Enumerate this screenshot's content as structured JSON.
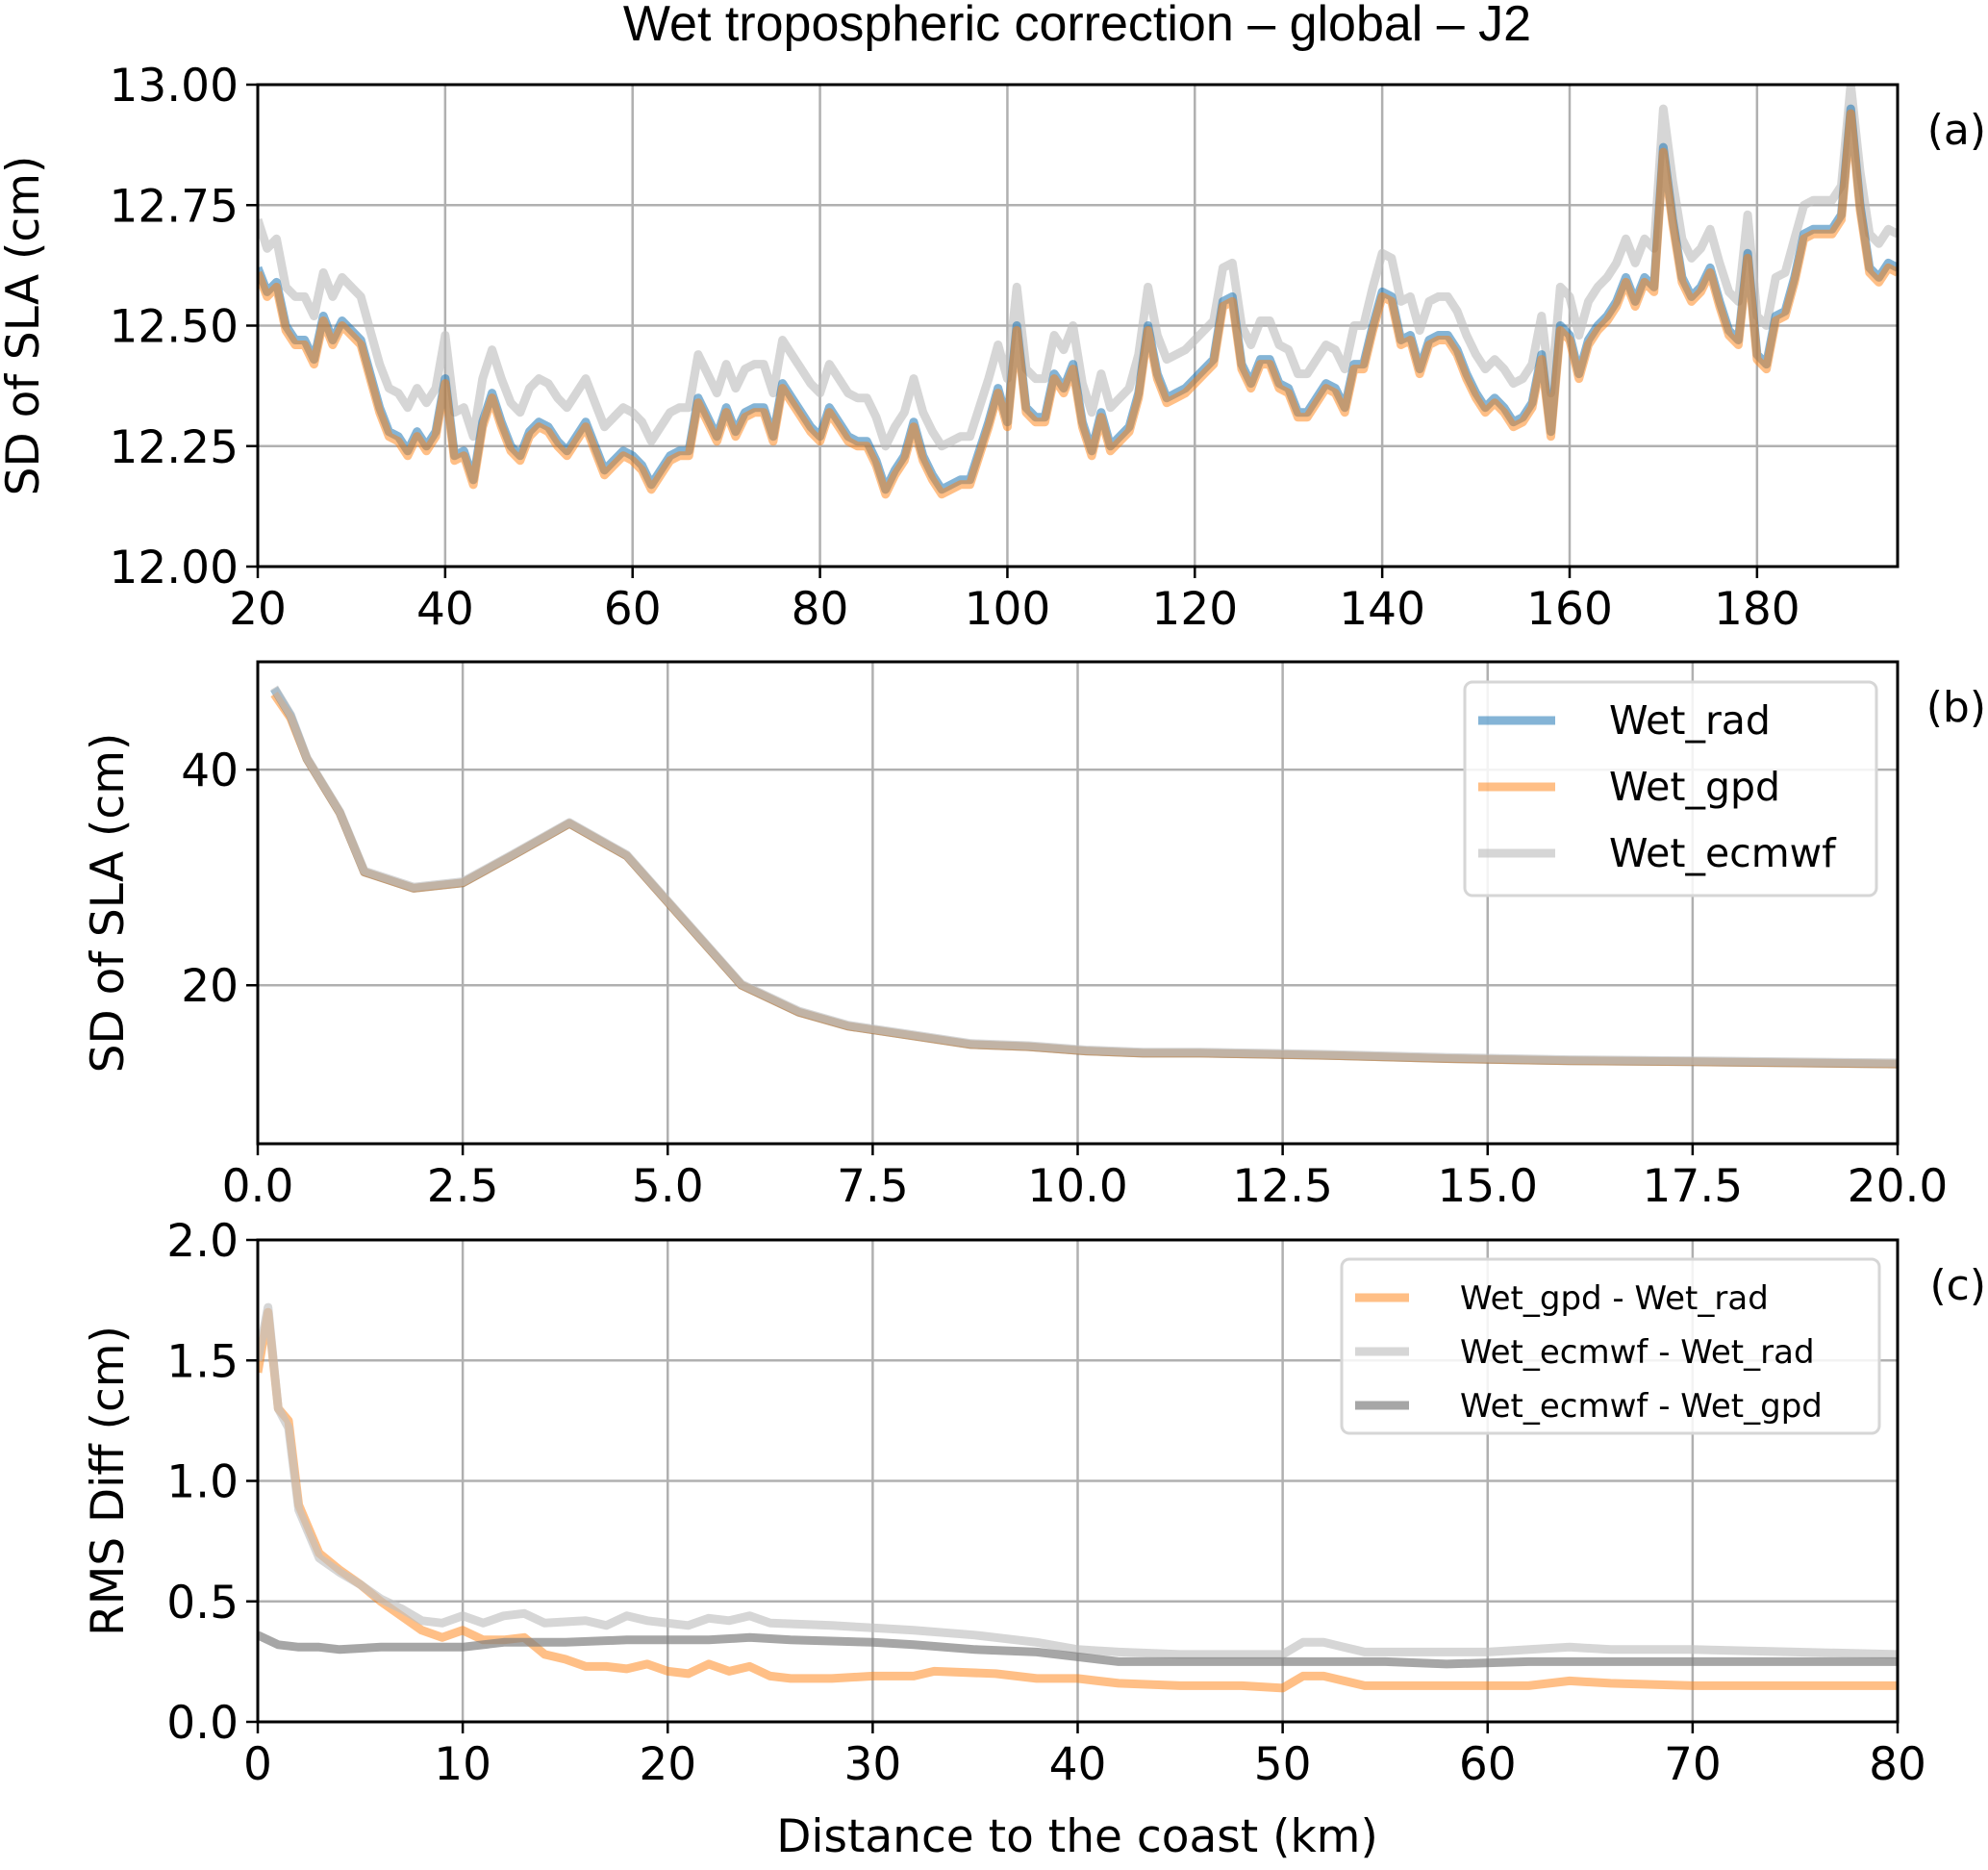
{
  "title": "Wet tropospheric correction – global – J2",
  "xlabel": "Distance to the coast (km)",
  "colors": {
    "Wet_rad": "#1f77b4",
    "Wet_gpd": "#ff7f0e",
    "Wet_ecmwf": "#c0c0c0",
    "Wet_ecmwf - Wet_gpd": "#808080"
  },
  "chart_data": [
    {
      "type": "line",
      "panel_label": "(a)",
      "ylabel": "SD of SLA (cm)",
      "xlim": [
        20,
        195
      ],
      "ylim": [
        12.0,
        13.0
      ],
      "grid": true,
      "xticks": [
        "20",
        "40",
        "60",
        "80",
        "100",
        "120",
        "140",
        "160",
        "180"
      ],
      "xtick_values": [
        20,
        40,
        60,
        80,
        100,
        120,
        140,
        160,
        180
      ],
      "yticks": [
        "12.00",
        "12.25",
        "12.50",
        "12.75",
        "13.00"
      ],
      "ytick_values": [
        12.0,
        12.25,
        12.5,
        12.75,
        13.0
      ],
      "x_start": 20,
      "x_step": 1,
      "series": [
        {
          "name": "Wet_ecmwf",
          "color": "#c0c0c0",
          "values": [
            12.72,
            12.66,
            12.68,
            12.58,
            12.56,
            12.56,
            12.52,
            12.61,
            12.56,
            12.6,
            12.58,
            12.56,
            12.49,
            12.42,
            12.37,
            12.36,
            12.33,
            12.37,
            12.34,
            12.37,
            12.48,
            12.32,
            12.33,
            12.27,
            12.39,
            12.45,
            12.39,
            12.34,
            12.32,
            12.37,
            12.39,
            12.38,
            12.35,
            12.33,
            12.36,
            12.39,
            12.34,
            12.29,
            12.31,
            12.33,
            12.32,
            12.3,
            12.26,
            12.29,
            12.32,
            12.33,
            12.33,
            12.44,
            12.4,
            12.36,
            12.42,
            12.37,
            12.41,
            12.42,
            12.42,
            12.36,
            12.47,
            12.44,
            12.41,
            12.38,
            12.36,
            12.42,
            12.39,
            12.36,
            12.35,
            12.35,
            12.31,
            12.25,
            12.29,
            12.32,
            12.39,
            12.32,
            12.28,
            12.25,
            12.26,
            12.27,
            12.27,
            12.33,
            12.39,
            12.46,
            12.39,
            12.58,
            12.41,
            12.39,
            12.39,
            12.48,
            12.45,
            12.5,
            12.38,
            12.32,
            12.4,
            12.33,
            12.35,
            12.37,
            12.44,
            12.58,
            12.48,
            12.43,
            12.44,
            12.45,
            12.47,
            12.49,
            12.51,
            12.62,
            12.63,
            12.5,
            12.46,
            12.51,
            12.51,
            12.46,
            12.45,
            12.4,
            12.4,
            12.43,
            12.46,
            12.45,
            12.41,
            12.5,
            12.5,
            12.58,
            12.65,
            12.64,
            12.55,
            12.56,
            12.49,
            12.55,
            12.56,
            12.56,
            12.53,
            12.48,
            12.44,
            12.41,
            12.43,
            12.41,
            12.38,
            12.39,
            12.42,
            12.52,
            12.36,
            12.58,
            12.56,
            12.48,
            12.55,
            12.58,
            12.6,
            12.63,
            12.68,
            12.63,
            12.68,
            12.66,
            12.95,
            12.8,
            12.68,
            12.64,
            12.66,
            12.7,
            12.63,
            12.57,
            12.55,
            12.73,
            12.52,
            12.5,
            12.6,
            12.61,
            12.68,
            12.75,
            12.76,
            12.76,
            12.76,
            12.79,
            13.0,
            12.82,
            12.69,
            12.67,
            12.7,
            12.69
          ]
        },
        {
          "name": "Wet_rad",
          "color": "#1f77b4",
          "values": [
            12.62,
            12.57,
            12.59,
            12.5,
            12.47,
            12.47,
            12.43,
            12.52,
            12.47,
            12.51,
            12.49,
            12.47,
            12.4,
            12.33,
            12.28,
            12.27,
            12.24,
            12.28,
            12.25,
            12.28,
            12.39,
            12.23,
            12.24,
            12.18,
            12.3,
            12.36,
            12.3,
            12.25,
            12.23,
            12.28,
            12.3,
            12.29,
            12.26,
            12.24,
            12.27,
            12.3,
            12.25,
            12.2,
            12.22,
            12.24,
            12.23,
            12.21,
            12.17,
            12.2,
            12.23,
            12.24,
            12.24,
            12.35,
            12.31,
            12.27,
            12.33,
            12.28,
            12.32,
            12.33,
            12.33,
            12.27,
            12.38,
            12.35,
            12.32,
            12.29,
            12.27,
            12.33,
            12.3,
            12.27,
            12.26,
            12.26,
            12.22,
            12.16,
            12.2,
            12.23,
            12.3,
            12.23,
            12.19,
            12.16,
            12.17,
            12.18,
            12.18,
            12.24,
            12.3,
            12.37,
            12.3,
            12.5,
            12.33,
            12.31,
            12.31,
            12.4,
            12.37,
            12.42,
            12.3,
            12.24,
            12.32,
            12.25,
            12.27,
            12.29,
            12.36,
            12.5,
            12.4,
            12.35,
            12.36,
            12.37,
            12.39,
            12.41,
            12.43,
            12.55,
            12.56,
            12.42,
            12.38,
            12.43,
            12.43,
            12.38,
            12.37,
            12.32,
            12.32,
            12.35,
            12.38,
            12.37,
            12.33,
            12.42,
            12.42,
            12.5,
            12.57,
            12.56,
            12.47,
            12.48,
            12.41,
            12.47,
            12.48,
            12.48,
            12.45,
            12.4,
            12.36,
            12.33,
            12.35,
            12.33,
            12.3,
            12.31,
            12.34,
            12.44,
            12.28,
            12.5,
            12.48,
            12.4,
            12.47,
            12.5,
            12.52,
            12.55,
            12.6,
            12.55,
            12.6,
            12.58,
            12.87,
            12.72,
            12.6,
            12.56,
            12.58,
            12.62,
            12.55,
            12.49,
            12.47,
            12.65,
            12.44,
            12.42,
            12.52,
            12.53,
            12.6,
            12.69,
            12.7,
            12.7,
            12.7,
            12.73,
            12.95,
            12.75,
            12.62,
            12.6,
            12.63,
            12.62
          ]
        },
        {
          "name": "Wet_gpd",
          "color": "#ff7f0e",
          "values": [
            12.61,
            12.56,
            12.58,
            12.49,
            12.46,
            12.46,
            12.42,
            12.51,
            12.46,
            12.5,
            12.48,
            12.46,
            12.39,
            12.32,
            12.27,
            12.26,
            12.23,
            12.27,
            12.24,
            12.27,
            12.38,
            12.22,
            12.23,
            12.17,
            12.29,
            12.35,
            12.29,
            12.24,
            12.22,
            12.27,
            12.29,
            12.28,
            12.25,
            12.23,
            12.26,
            12.29,
            12.24,
            12.19,
            12.21,
            12.23,
            12.22,
            12.2,
            12.16,
            12.19,
            12.22,
            12.23,
            12.23,
            12.34,
            12.3,
            12.26,
            12.32,
            12.27,
            12.31,
            12.32,
            12.32,
            12.26,
            12.37,
            12.34,
            12.31,
            12.28,
            12.26,
            12.32,
            12.29,
            12.26,
            12.25,
            12.25,
            12.21,
            12.15,
            12.19,
            12.22,
            12.29,
            12.22,
            12.18,
            12.15,
            12.16,
            12.17,
            12.17,
            12.23,
            12.29,
            12.36,
            12.29,
            12.49,
            12.32,
            12.3,
            12.3,
            12.39,
            12.36,
            12.41,
            12.29,
            12.23,
            12.31,
            12.24,
            12.26,
            12.28,
            12.35,
            12.49,
            12.39,
            12.34,
            12.35,
            12.36,
            12.38,
            12.4,
            12.42,
            12.54,
            12.55,
            12.41,
            12.37,
            12.42,
            12.42,
            12.37,
            12.36,
            12.31,
            12.31,
            12.34,
            12.37,
            12.36,
            12.32,
            12.41,
            12.41,
            12.49,
            12.56,
            12.55,
            12.46,
            12.47,
            12.4,
            12.46,
            12.47,
            12.47,
            12.44,
            12.39,
            12.35,
            12.32,
            12.34,
            12.32,
            12.29,
            12.3,
            12.33,
            12.43,
            12.27,
            12.49,
            12.47,
            12.39,
            12.46,
            12.49,
            12.51,
            12.54,
            12.59,
            12.54,
            12.59,
            12.57,
            12.86,
            12.71,
            12.59,
            12.55,
            12.57,
            12.61,
            12.54,
            12.48,
            12.46,
            12.64,
            12.43,
            12.41,
            12.51,
            12.52,
            12.59,
            12.68,
            12.69,
            12.69,
            12.69,
            12.72,
            12.94,
            12.74,
            12.61,
            12.59,
            12.62,
            12.61
          ]
        }
      ]
    },
    {
      "type": "line",
      "panel_label": "(b)",
      "ylabel": "SD of SLA (cm)",
      "xlim": [
        0,
        20
      ],
      "ylim": [
        5.3,
        50
      ],
      "grid": true,
      "legend": "top-right",
      "xticks": [
        "0.0",
        "2.5",
        "5.0",
        "7.5",
        "10.0",
        "12.5",
        "15.0",
        "17.5",
        "20.0"
      ],
      "xtick_values": [
        0,
        2.5,
        5,
        7.5,
        10,
        12.5,
        15,
        17.5,
        20
      ],
      "yticks": [
        "20",
        "40"
      ],
      "ytick_values": [
        20,
        40
      ],
      "x": [
        0.2,
        0.4,
        0.6,
        1.0,
        1.3,
        1.9,
        2.5,
        3.1,
        3.8,
        4.5,
        5.2,
        5.9,
        6.6,
        7.2,
        8.0,
        8.7,
        9.4,
        10.1,
        10.8,
        11.5,
        12.3,
        13.0,
        14.5,
        16.0,
        17.5,
        20.0
      ],
      "series": [
        {
          "name": "Wet_rad",
          "color": "#1f77b4",
          "values": [
            47.5,
            45.0,
            41.0,
            36.0,
            30.5,
            29.0,
            29.5,
            32.0,
            35.0,
            32.0,
            26.0,
            20.0,
            17.5,
            16.2,
            15.3,
            14.5,
            14.3,
            13.9,
            13.7,
            13.7,
            13.6,
            13.5,
            13.2,
            13.0,
            12.9,
            12.7
          ]
        },
        {
          "name": "Wet_gpd",
          "color": "#ff7f0e",
          "values": [
            47.0,
            44.8,
            41.0,
            36.0,
            30.5,
            29.0,
            29.5,
            32.0,
            35.0,
            32.0,
            26.0,
            20.0,
            17.5,
            16.2,
            15.3,
            14.5,
            14.3,
            13.9,
            13.7,
            13.7,
            13.6,
            13.5,
            13.2,
            13.0,
            12.9,
            12.7
          ]
        },
        {
          "name": "Wet_ecmwf",
          "color": "#c0c0c0",
          "values": [
            47.6,
            45.1,
            41.1,
            36.1,
            30.6,
            29.1,
            29.6,
            32.1,
            35.1,
            32.1,
            26.1,
            20.1,
            17.6,
            16.3,
            15.4,
            14.6,
            14.4,
            14.0,
            13.8,
            13.8,
            13.7,
            13.6,
            13.3,
            13.1,
            13.0,
            12.8
          ]
        }
      ]
    },
    {
      "type": "line",
      "panel_label": "(c)",
      "ylabel": "RMS Diff (cm)",
      "xlim": [
        0,
        80
      ],
      "ylim": [
        0,
        2.0
      ],
      "grid": true,
      "legend": "top-right",
      "xticks": [
        "0",
        "10",
        "20",
        "30",
        "40",
        "50",
        "60",
        "70",
        "80"
      ],
      "xtick_values": [
        0,
        10,
        20,
        30,
        40,
        50,
        60,
        70,
        80
      ],
      "yticks": [
        "0.0",
        "0.5",
        "1.0",
        "1.5",
        "2.0"
      ],
      "ytick_values": [
        0,
        0.5,
        1.0,
        1.5,
        2.0
      ],
      "series": [
        {
          "name": "Wet_gpd - Wet_rad",
          "color": "#ff7f0e",
          "x": [
            0,
            0.5,
            1,
            1.5,
            2,
            3,
            4,
            5,
            6,
            7,
            8,
            9,
            10,
            11,
            12,
            13,
            14,
            15,
            16,
            17,
            18,
            19,
            20,
            21,
            22,
            23,
            24,
            25,
            26,
            28,
            30,
            32,
            33,
            36,
            38,
            40,
            42,
            45,
            48,
            50,
            51,
            52,
            54,
            58,
            62,
            64,
            66,
            70,
            75,
            80
          ],
          "values": [
            1.45,
            1.7,
            1.3,
            1.25,
            0.9,
            0.7,
            0.63,
            0.57,
            0.5,
            0.44,
            0.38,
            0.35,
            0.38,
            0.34,
            0.34,
            0.35,
            0.28,
            0.26,
            0.23,
            0.23,
            0.22,
            0.24,
            0.21,
            0.2,
            0.24,
            0.21,
            0.23,
            0.19,
            0.18,
            0.18,
            0.19,
            0.19,
            0.21,
            0.2,
            0.18,
            0.18,
            0.16,
            0.15,
            0.15,
            0.14,
            0.19,
            0.19,
            0.15,
            0.15,
            0.15,
            0.17,
            0.16,
            0.15,
            0.15,
            0.15
          ]
        },
        {
          "name": "Wet_ecmwf - Wet_rad",
          "color": "#c0c0c0",
          "x": [
            0,
            0.5,
            1,
            1.5,
            2,
            3,
            4,
            5,
            6,
            7,
            8,
            9,
            10,
            11,
            12,
            13,
            14,
            16,
            17,
            18,
            19,
            20,
            21,
            22,
            23,
            24,
            25,
            28,
            30,
            32,
            35,
            38,
            40,
            42,
            45,
            50,
            51,
            52,
            54,
            60,
            64,
            66,
            70,
            75,
            80
          ],
          "values": [
            1.5,
            1.72,
            1.3,
            1.22,
            0.88,
            0.68,
            0.62,
            0.57,
            0.51,
            0.47,
            0.42,
            0.41,
            0.44,
            0.41,
            0.44,
            0.45,
            0.41,
            0.42,
            0.4,
            0.44,
            0.42,
            0.41,
            0.4,
            0.43,
            0.42,
            0.44,
            0.41,
            0.4,
            0.39,
            0.38,
            0.36,
            0.33,
            0.3,
            0.29,
            0.28,
            0.28,
            0.33,
            0.33,
            0.29,
            0.29,
            0.31,
            0.3,
            0.3,
            0.29,
            0.28
          ]
        },
        {
          "name": "Wet_ecmwf - Wet_gpd",
          "color": "#808080",
          "x": [
            0,
            1,
            2,
            3,
            4,
            6,
            10,
            12,
            15,
            18,
            22,
            24,
            26,
            30,
            32,
            35,
            38,
            40,
            42,
            45,
            50,
            55,
            58,
            62,
            70,
            80
          ],
          "values": [
            0.36,
            0.32,
            0.31,
            0.31,
            0.3,
            0.31,
            0.31,
            0.33,
            0.33,
            0.34,
            0.34,
            0.35,
            0.34,
            0.33,
            0.32,
            0.3,
            0.29,
            0.27,
            0.25,
            0.25,
            0.25,
            0.25,
            0.24,
            0.25,
            0.25,
            0.25
          ]
        }
      ]
    }
  ]
}
